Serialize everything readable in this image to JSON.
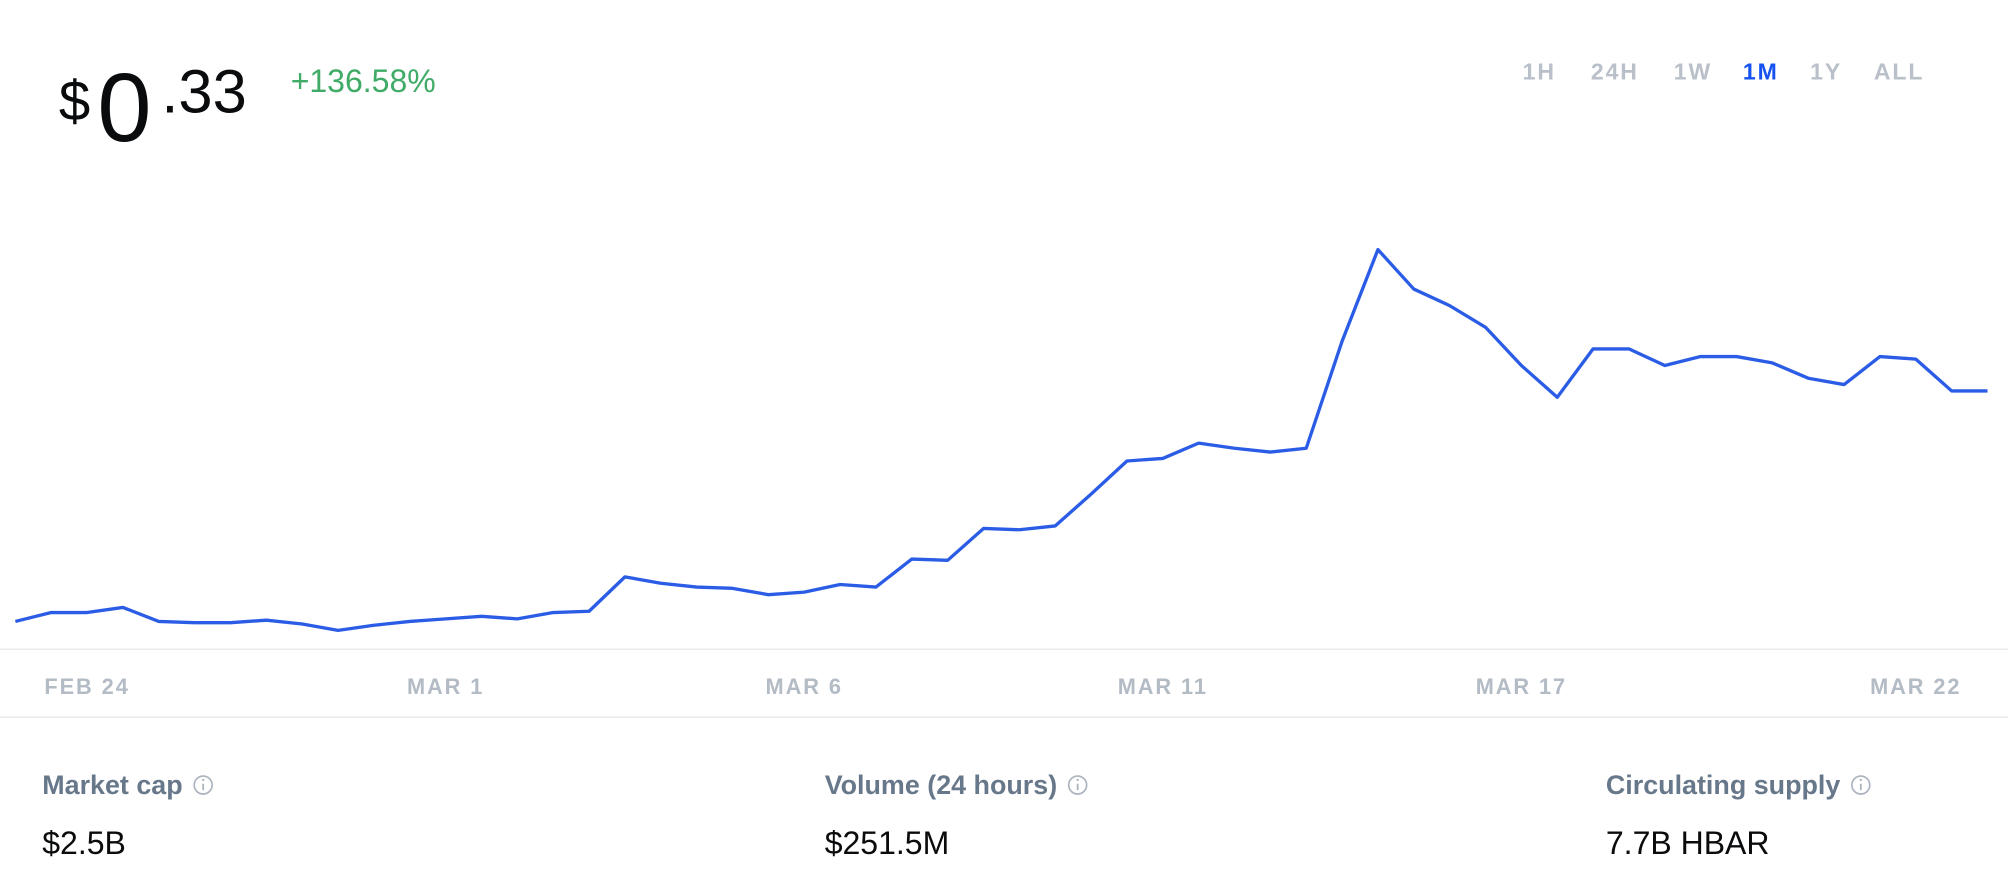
{
  "header": {
    "currency": "$",
    "integer": "0",
    "decimal": ".33",
    "change": "+136.58%"
  },
  "range_options": [
    "1H",
    "24H",
    "1W",
    "1M",
    "1Y",
    "ALL"
  ],
  "selected_range": 3,
  "chart_data": {
    "type": "line",
    "categories": [
      null,
      null,
      "FEB 24",
      null,
      null,
      null,
      null,
      null,
      null,
      null,
      null,
      null,
      "MAR 1",
      null,
      null,
      null,
      null,
      null,
      null,
      null,
      null,
      null,
      "MAR 6",
      null,
      null,
      null,
      null,
      null,
      null,
      null,
      null,
      null,
      "MAR 11",
      null,
      null,
      null,
      null,
      null,
      null,
      null,
      null,
      null,
      "MAR 17",
      null,
      null,
      null,
      null,
      null,
      null,
      null,
      null,
      null,
      null,
      "MAR 22",
      null,
      null
    ],
    "series": [
      {
        "color": "#2b5ce6",
        "values": [
          0.144,
          0.151,
          0.151,
          0.155,
          0.144,
          0.143,
          0.143,
          0.145,
          0.142,
          0.137,
          0.141,
          0.144,
          0.146,
          0.148,
          0.146,
          0.151,
          0.152,
          0.179,
          0.174,
          0.171,
          0.17,
          0.165,
          0.167,
          0.173,
          0.171,
          0.193,
          0.192,
          0.217,
          0.216,
          0.219,
          0.244,
          0.27,
          0.272,
          0.284,
          0.28,
          0.277,
          0.28,
          0.364,
          0.436,
          0.405,
          0.392,
          0.375,
          0.345,
          0.32,
          0.358,
          0.358,
          0.345,
          0.352,
          0.352,
          0.347,
          0.335,
          0.33,
          0.352,
          0.35,
          0.325,
          0.325
        ]
      }
    ],
    "ylim": [
      0.1,
      0.46
    ]
  },
  "stats": [
    {
      "label": "Market cap",
      "value": "$2.5B"
    },
    {
      "label": "Volume (24 hours)",
      "value": "$251.5M"
    },
    {
      "label": "Circulating supply",
      "value": "7.7B HBAR"
    }
  ]
}
